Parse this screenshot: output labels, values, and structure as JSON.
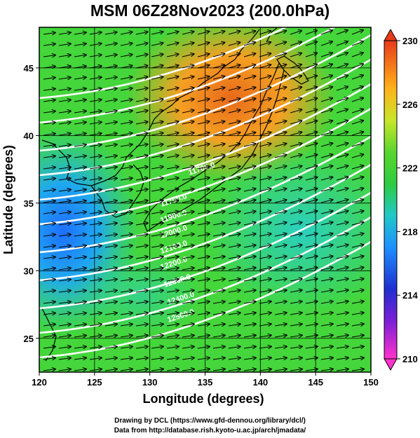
{
  "title": "MSM 06Z28Nov2023 (200.0hPa)",
  "x_axis": {
    "label": "Longitude (degrees)",
    "min": 120,
    "max": 150,
    "ticks": [
      120,
      125,
      130,
      135,
      140,
      145,
      150
    ]
  },
  "y_axis": {
    "label": "Latitude  (degrees)",
    "min": 22.5,
    "max": 48,
    "ticks": [
      25,
      30,
      35,
      40,
      45
    ]
  },
  "colorbar": {
    "min": 210,
    "max": 230,
    "ticks": [
      210,
      214,
      218,
      222,
      226,
      230
    ]
  },
  "contour_labels": [
    "11700.0",
    "11700.0",
    "11900.0",
    "12000.0",
    "12100.0",
    "12200.0",
    "12300.0",
    "12400.0",
    "12500.0"
  ],
  "credits": {
    "line1": "Drawing by DCL (https://www.gfd-dennou.org/library/dcl/)",
    "line2": "Data from http://database.rish.kyoto-u.ac.jp/arch/jmadata/"
  },
  "colors": {
    "cold": "#1e90ff",
    "mid": "#2ecc40",
    "warm": "#ff8c1a"
  }
}
